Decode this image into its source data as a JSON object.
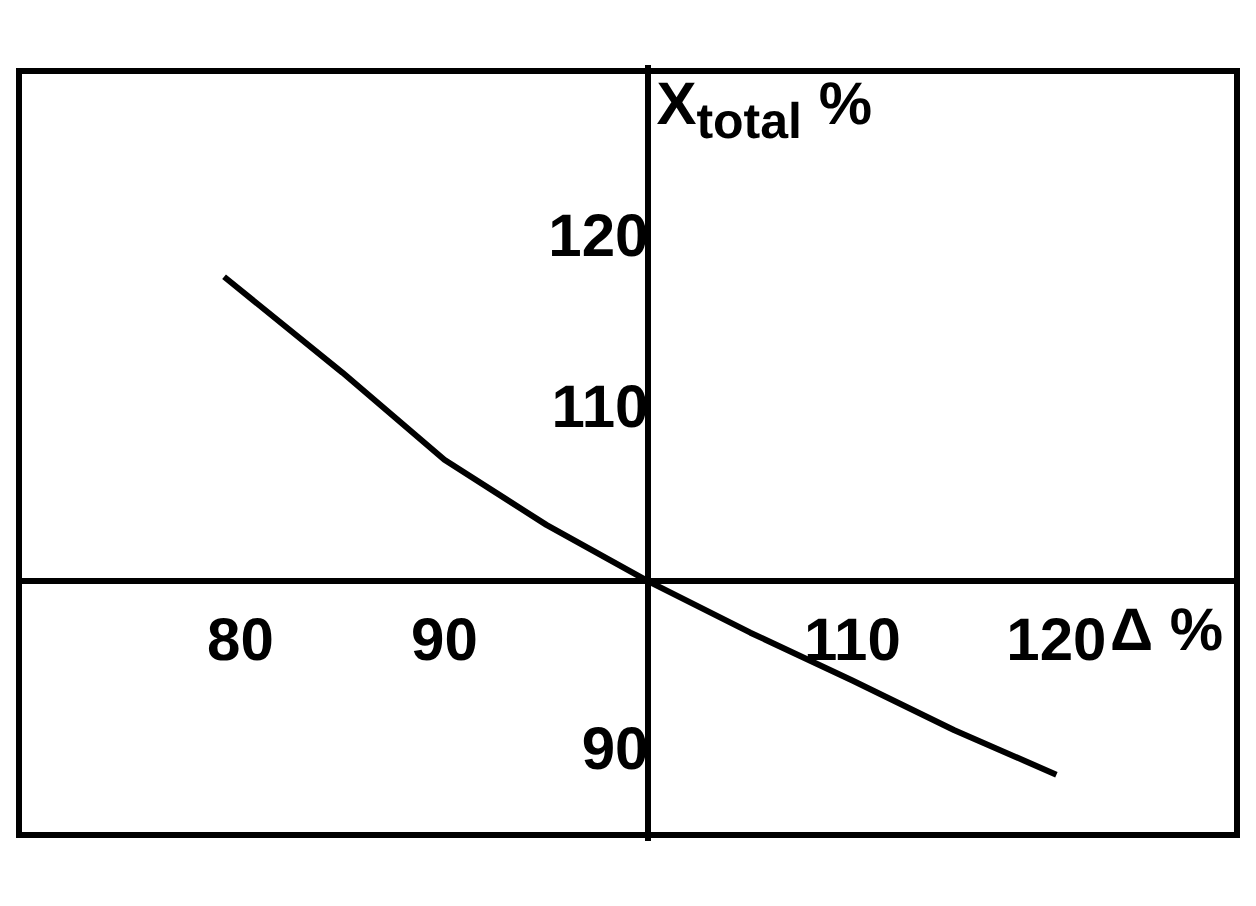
{
  "chart_data": {
    "type": "line",
    "xlabel": "Δ %",
    "ylabel": "X$_{total}$ %",
    "x": [
      79.2,
      85,
      90,
      95,
      100,
      105,
      110,
      115,
      120
    ],
    "series": [
      {
        "color": "#000000",
        "values": [
          117.8,
          112.2,
          107.1,
          103.3,
          100,
          97,
          94.2,
          91.3,
          88.7
        ]
      }
    ],
    "xlim": [
      69,
      129
    ],
    "ylim": [
      85,
      130
    ],
    "xticks": [
      80,
      90,
      110,
      120
    ],
    "yticks": [
      90,
      110,
      120
    ],
    "grid": false,
    "legend": false,
    "marker": "none",
    "line_style": "solid"
  }
}
